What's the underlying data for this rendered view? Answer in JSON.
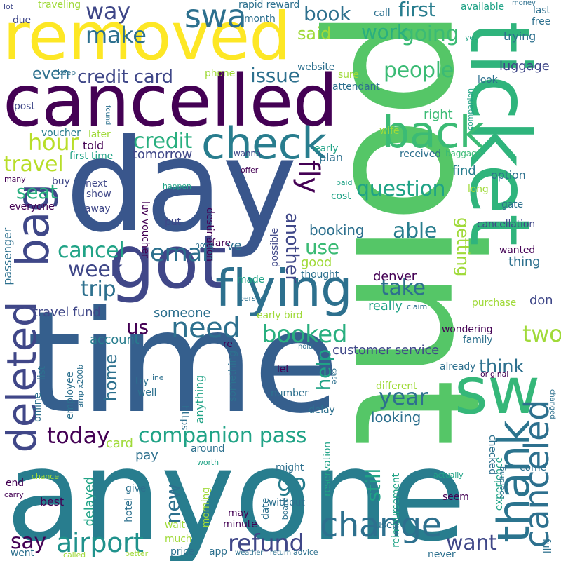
{
  "words": [
    "point",
    "time",
    "anyone",
    "day",
    "ticket",
    "cancelled",
    "got",
    "removed",
    "sw",
    "flying",
    "check",
    "bag",
    "back",
    "deleted",
    "thank",
    "canceled",
    "swa",
    "change",
    "need",
    "airport",
    "email",
    "companion pass",
    "fly",
    "booked",
    "refund",
    "way",
    "make",
    "hour",
    "credit card",
    "credit",
    "travel",
    "cancel",
    "week",
    "trip",
    "today",
    "say",
    "question",
    "year",
    "go",
    "people",
    "going",
    "work",
    "book",
    "first",
    "said",
    "issue",
    "seat",
    "us",
    "take",
    "able",
    "two",
    "think",
    "help",
    "still",
    "want",
    "use",
    "another",
    "getting",
    "denver",
    "home",
    "new",
    "customer service",
    "travel fund",
    "account",
    "someone",
    "card",
    "pay",
    "looking",
    "booking",
    "luggage",
    "option",
    "early bird",
    "even",
    "tomorrow",
    "told",
    "first time",
    "voucher",
    "luv voucher",
    "rapid reward",
    "really",
    "good",
    "thought",
    "made",
    "possible",
    "ve",
    "don",
    "thing",
    "purchase",
    "cancellation",
    "wanted",
    "find",
    "long",
    "right",
    "received",
    "baggage",
    "plan",
    "early",
    "cost",
    "paid",
    "show",
    "next",
    "away",
    "put",
    "destination",
    "fare",
    "hope",
    "person",
    "passenger",
    "everyone",
    "many",
    "offer",
    "wanna",
    "later",
    "buy",
    "post",
    "due",
    "lot",
    "traveling",
    "month",
    "call",
    "available",
    "money",
    "last",
    "free",
    "yet",
    "trying",
    "keep",
    "website",
    "attendant",
    "sure",
    "phone",
    "look",
    "companion",
    "found",
    "happen",
    "gate",
    "wife",
    "already",
    "original",
    "wondering",
    "family",
    "re",
    "hold",
    "let",
    "case",
    "list",
    "online",
    "employee",
    "amp x200b",
    "try",
    "line",
    "well",
    "https",
    "anything",
    "something",
    "number",
    "delay",
    "different",
    "reservation",
    "experience",
    "reimbursement",
    "checked",
    "changed",
    "claim",
    "around",
    "worth",
    "might",
    "come",
    "delayed",
    "hotel",
    "give",
    "best",
    "chance",
    "end",
    "carry",
    "morning",
    "minute",
    "may",
    "date",
    "board",
    "without",
    "seem",
    "actually",
    "boarding",
    "used",
    "wait",
    "much",
    "price",
    "app",
    "weather",
    "return",
    "advice",
    "called",
    "better",
    "went",
    "never",
    "full"
  ],
  "colors": {
    "background": "#ffffff",
    "palette": [
      "#440154",
      "#46327e",
      "#365c8d",
      "#277f8e",
      "#1fa187",
      "#4ac16d",
      "#a0da39",
      "#fde725"
    ]
  }
}
